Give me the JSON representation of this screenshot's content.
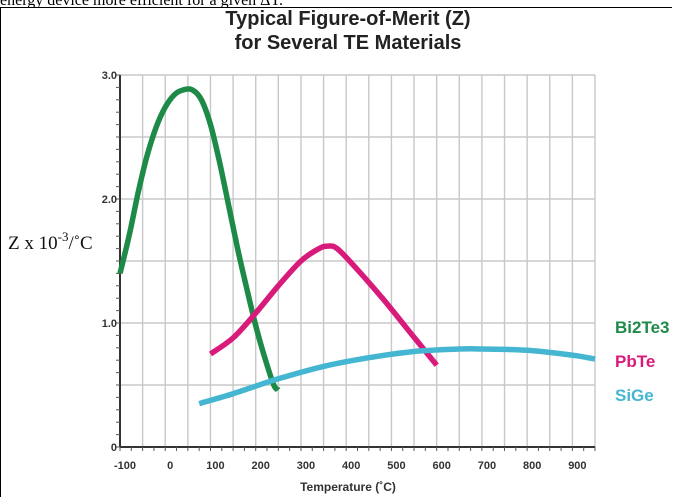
{
  "page": {
    "top_fragment": "energy device more efficient for a given ΔT."
  },
  "chart_data": {
    "type": "line",
    "title_line1": "Typical Figure-of-Merit (Z)",
    "title_line2": "for Several TE Materials",
    "xlabel": "Temperature (˚C)",
    "ylabel": "Z x 10",
    "ylabel_sup": "-3",
    "ylabel_unit": "/˚C",
    "xlim": [
      -100,
      950
    ],
    "ylim": [
      0,
      3.0
    ],
    "x_ticks": [
      -100,
      0,
      100,
      200,
      300,
      400,
      500,
      600,
      700,
      800,
      900
    ],
    "x_tick_labels": [
      "-100",
      "0",
      "100",
      "200",
      "300",
      "400",
      "500",
      "600",
      "700",
      "800",
      "900"
    ],
    "y_ticks": [
      0,
      1.0,
      2.0,
      3.0
    ],
    "y_tick_labels": [
      "0",
      "1.0",
      "2.0",
      "3.0"
    ],
    "grid": true,
    "series": [
      {
        "name": "Bi2Te3",
        "color": "#1e8a47",
        "x": [
          -100,
          -80,
          -60,
          -40,
          -20,
          0,
          20,
          40,
          60,
          80,
          100,
          120,
          140,
          160,
          180,
          200,
          220,
          240,
          250
        ],
        "y": [
          1.4,
          1.7,
          2.05,
          2.35,
          2.58,
          2.74,
          2.84,
          2.88,
          2.88,
          2.8,
          2.6,
          2.3,
          1.95,
          1.6,
          1.28,
          0.98,
          0.72,
          0.5,
          0.46
        ]
      },
      {
        "name": "PbTe",
        "color": "#d81b7b",
        "x": [
          100,
          150,
          200,
          250,
          300,
          340,
          360,
          380,
          420,
          480,
          540,
          600
        ],
        "y": [
          0.75,
          0.88,
          1.08,
          1.3,
          1.5,
          1.6,
          1.62,
          1.6,
          1.45,
          1.2,
          0.93,
          0.66
        ]
      },
      {
        "name": "SiGe",
        "color": "#45b6d1",
        "x": [
          75,
          150,
          250,
          350,
          450,
          550,
          650,
          700,
          800,
          900,
          950
        ],
        "y": [
          0.35,
          0.43,
          0.55,
          0.65,
          0.72,
          0.77,
          0.79,
          0.79,
          0.78,
          0.74,
          0.71
        ]
      }
    ]
  }
}
